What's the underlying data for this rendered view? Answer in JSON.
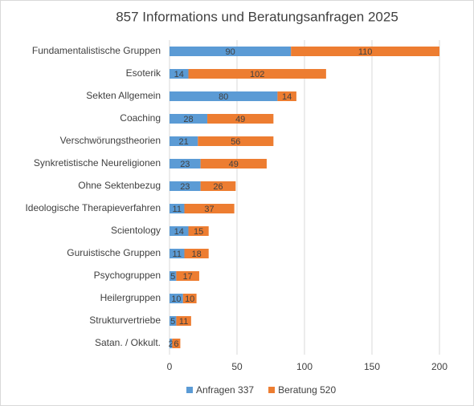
{
  "chart_data": {
    "type": "stacked_barh",
    "title": "857 Informations und Beratungsanfragen 2025",
    "categories": [
      "Fundamentalistische Gruppen",
      "Esoterik",
      "Sekten Allgemein",
      "Coaching",
      "Verschwörungstheorien",
      "Synkretistische Neureligionen",
      "Ohne Sektenbezug",
      "Ideologische Therapieverfahren",
      "Scientology",
      "Guruistische Gruppen",
      "Psychogruppen",
      "Heilergruppen",
      "Strukturvertriebe",
      "Satan. / Okkult."
    ],
    "series": [
      {
        "name": "Anfragen 337",
        "color": "#5b9bd5",
        "values": [
          90,
          14,
          80,
          28,
          21,
          23,
          23,
          11,
          14,
          11,
          5,
          10,
          5,
          2
        ]
      },
      {
        "name": "Beratung 520",
        "color": "#ed7d31",
        "values": [
          110,
          102,
          14,
          49,
          56,
          49,
          26,
          37,
          15,
          18,
          17,
          10,
          11,
          6
        ]
      }
    ],
    "xlim": [
      0,
      200
    ],
    "xticks": [
      0,
      50,
      100,
      150,
      200
    ],
    "grid": true,
    "legend": "bottom"
  }
}
